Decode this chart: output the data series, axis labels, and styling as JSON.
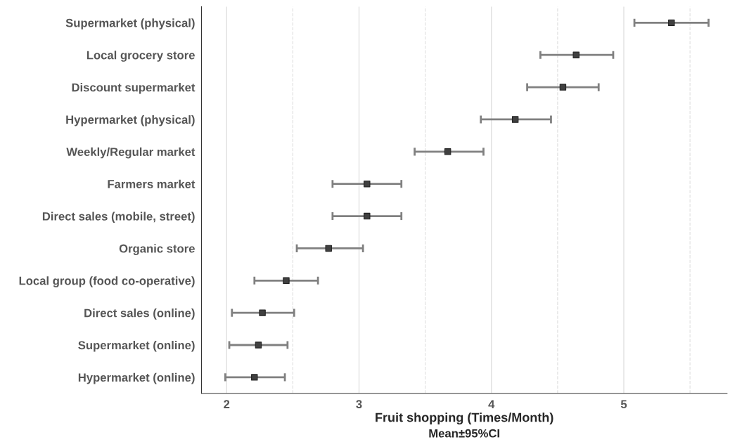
{
  "chart_data": {
    "type": "scatter",
    "orientation": "horizontal",
    "categories": [
      "Supermarket (physical)",
      "Local grocery store",
      "Discount supermarket",
      "Hypermarket (physical)",
      "Weekly/Regular market",
      "Farmers market",
      "Direct sales (mobile, street)",
      "Organic store",
      "Local group (food co-operative)",
      "Direct sales (online)",
      "Supermarket (online)",
      "Hypermarket (online)"
    ],
    "values": [
      5.36,
      4.64,
      4.54,
      4.18,
      3.67,
      3.06,
      3.06,
      2.77,
      2.45,
      2.27,
      2.24,
      2.21
    ],
    "errors": [
      [
        5.08,
        5.64
      ],
      [
        4.37,
        4.92
      ],
      [
        4.27,
        4.81
      ],
      [
        3.92,
        4.45
      ],
      [
        3.42,
        3.94
      ],
      [
        2.8,
        3.32
      ],
      [
        2.8,
        3.32
      ],
      [
        2.53,
        3.03
      ],
      [
        2.21,
        2.69
      ],
      [
        2.04,
        2.51
      ],
      [
        2.02,
        2.46
      ],
      [
        1.99,
        2.44
      ]
    ],
    "color": "#404040",
    "marker": "square",
    "xlabel": "Fruit shopping (Times/Month)",
    "annotations": [
      "Mean±95%CI"
    ],
    "xlim": [
      1.81,
      5.78
    ],
    "xticks": [
      2,
      {
        "value": 2.5,
        "label": null
      },
      3,
      {
        "value": 3.5,
        "label": null
      },
      4,
      {
        "value": 4.5,
        "label": null
      },
      5,
      {
        "value": 5.5,
        "label": null
      }
    ],
    "grid": "x"
  }
}
